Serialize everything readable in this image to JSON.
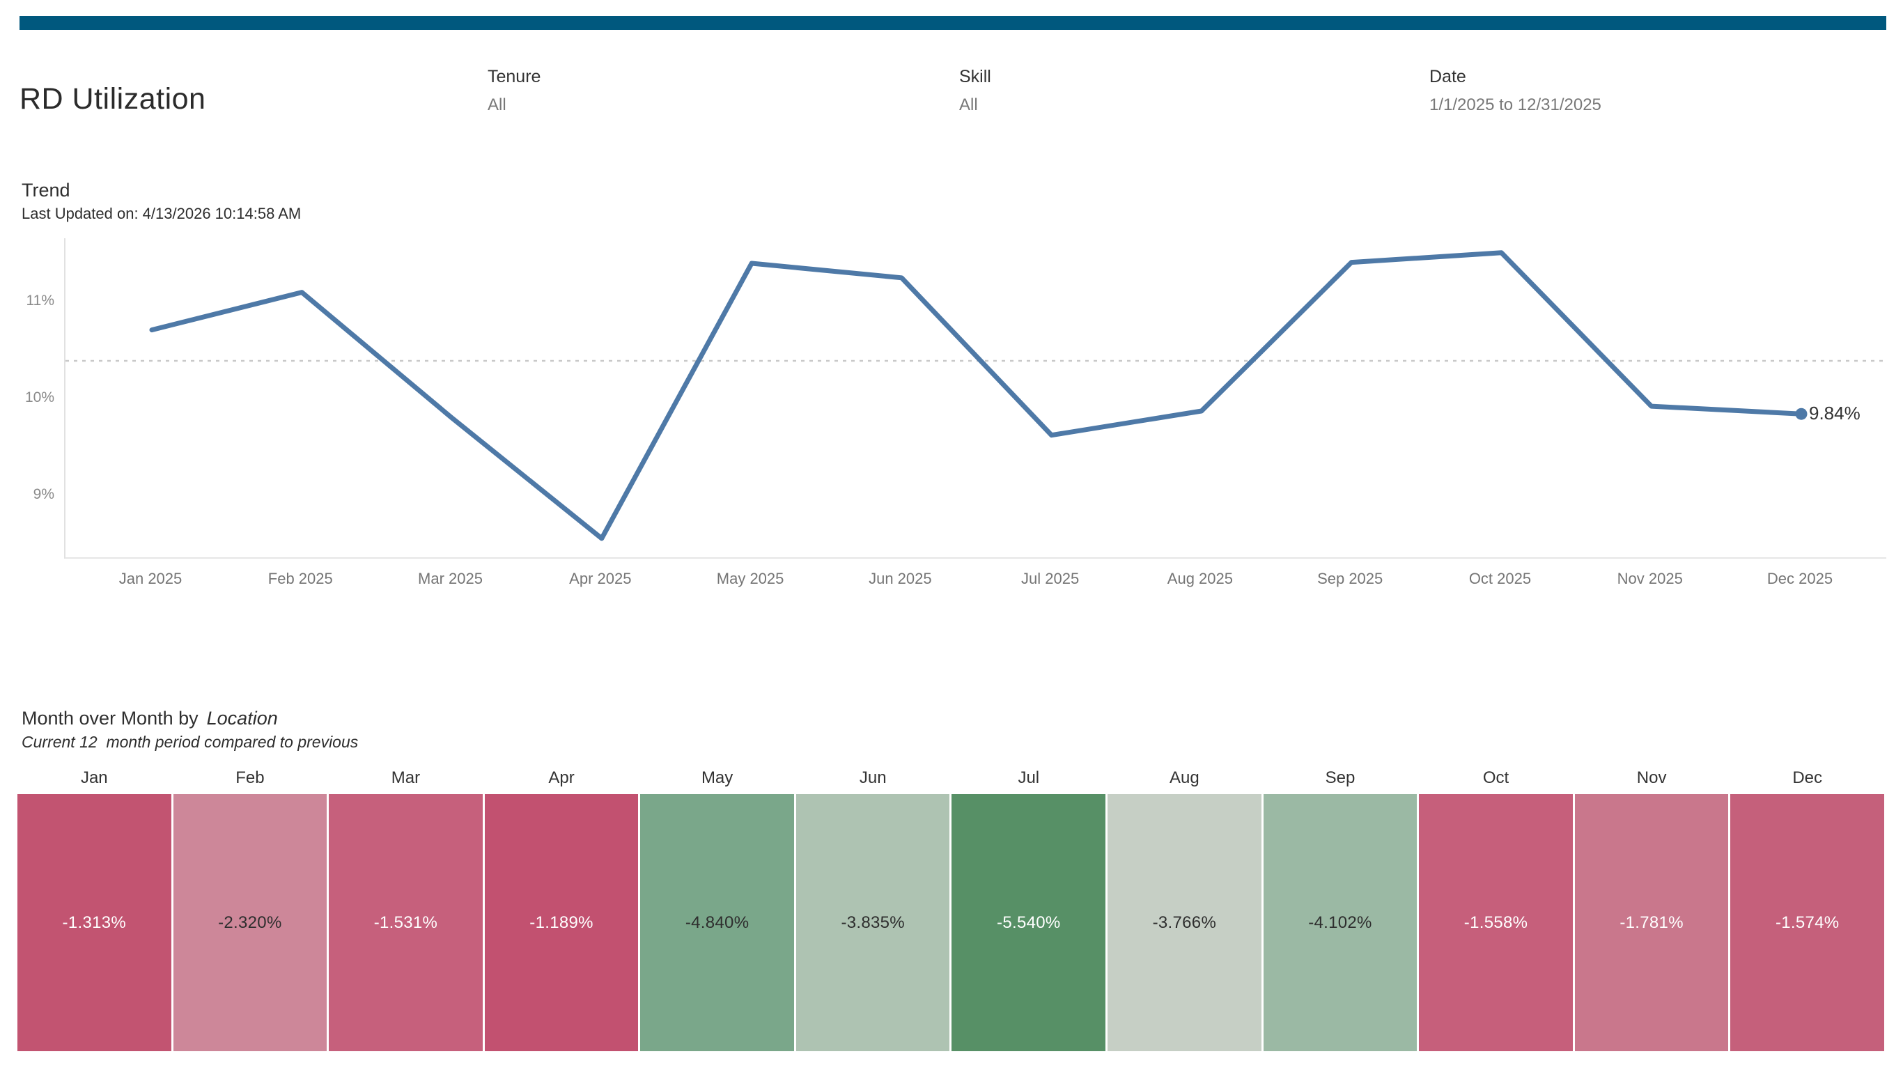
{
  "accent_bar": {
    "color": "#00587e"
  },
  "header": {
    "title": "RD Utilization",
    "filters": [
      {
        "label": "Tenure",
        "value": "All"
      },
      {
        "label": "Skill",
        "value": "All"
      },
      {
        "label": "Date",
        "value": "1/1/2025 to 12/31/2025"
      }
    ]
  },
  "trend": {
    "title": "Trend",
    "subtitle": "Last Updated on: 4/13/2026 10:14:58 AM",
    "end_label": "9.84%"
  },
  "mom": {
    "title_prefix": "Month over Month by",
    "title_dimension": "Location",
    "subtitle": "Current 12  month period compared to previous"
  },
  "chart_data": [
    {
      "type": "line",
      "title": "Trend",
      "x": [
        "Jan 2025",
        "Feb 2025",
        "Mar 2025",
        "Apr 2025",
        "May 2025",
        "Jun 2025",
        "Jul 2025",
        "Aug 2025",
        "Sep 2025",
        "Oct 2025",
        "Nov 2025",
        "Dec 2025"
      ],
      "values": [
        10.71,
        11.1,
        9.8,
        8.55,
        11.4,
        11.25,
        9.62,
        9.87,
        11.41,
        11.51,
        9.92,
        9.84
      ],
      "ylabel": "",
      "xlabel": "",
      "ylim": [
        8.34,
        11.66
      ],
      "yticks": [
        {
          "value": 9,
          "label": "9%"
        },
        {
          "value": 10,
          "label": "10%"
        },
        {
          "value": 11,
          "label": "11%"
        }
      ],
      "ref_line": {
        "value": 10.39,
        "style": "dotted",
        "color": "#c9c9c9"
      },
      "line_color": "#4e79a7",
      "grid": false,
      "last_point_label": "9.84%",
      "last_point_marker": true
    },
    {
      "type": "heatmap",
      "title": "Month over Month by Location",
      "subtitle": "Current 12 month period compared to previous",
      "categories": [
        "Jan",
        "Feb",
        "Mar",
        "Apr",
        "May",
        "Jun",
        "Jul",
        "Aug",
        "Sep",
        "Oct",
        "Nov",
        "Dec"
      ],
      "values": [
        -1.313,
        -2.32,
        -1.531,
        -1.189,
        -4.84,
        -3.835,
        -5.54,
        -3.766,
        -4.102,
        -1.558,
        -1.781,
        -1.574
      ],
      "values_display": [
        "-1.313%",
        "-2.320%",
        "-1.531%",
        "-1.189%",
        "-4.840%",
        "-3.835%",
        "-5.540%",
        "-3.766%",
        "-4.102%",
        "-1.558%",
        "-1.781%",
        "-1.574%"
      ],
      "cell_colors": [
        "#c25471",
        "#cd8799",
        "#c6607c",
        "#c25170",
        "#7aa78a",
        "#aec3b2",
        "#579066",
        "#c6cfc5",
        "#9bb9a4",
        "#c65f7b",
        "#c9778c",
        "#c5607b"
      ],
      "text_colors": [
        "#ffffff",
        "#2e2e2e",
        "#ffffff",
        "#ffffff",
        "#2e2e2e",
        "#2e2e2e",
        "#ffffff",
        "#2e2e2e",
        "#2e2e2e",
        "#ffffff",
        "#ffffff",
        "#ffffff"
      ],
      "legend": "none"
    }
  ]
}
